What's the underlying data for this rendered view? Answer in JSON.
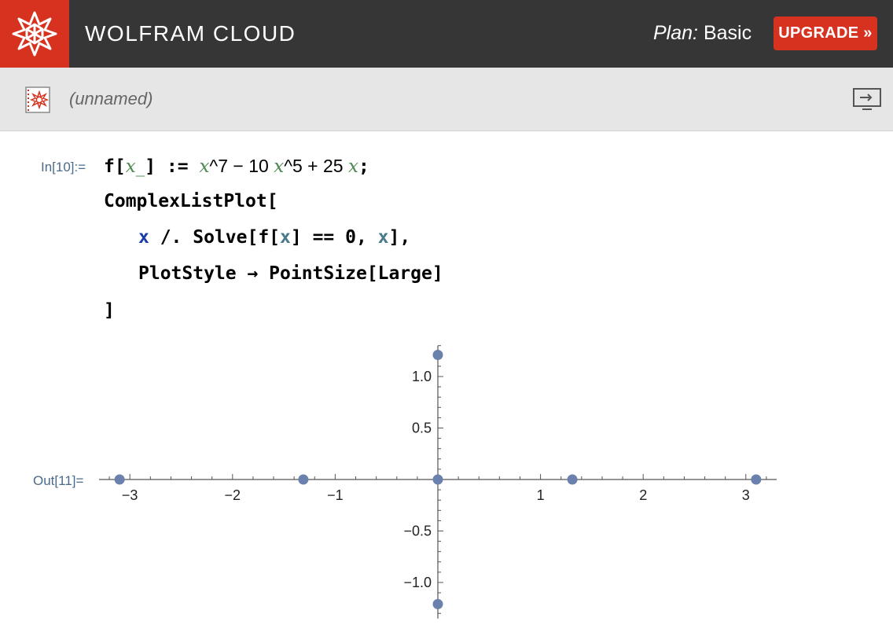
{
  "header": {
    "brand": "WOLFRAM CLOUD",
    "plan_label": "Plan:",
    "plan_value": "Basic",
    "upgrade_label": "UPGRADE »",
    "logo_icon": "wolfram-spikey-icon",
    "accent": "#d6321f",
    "bar_color": "#363636"
  },
  "docbar": {
    "doc_icon": "notebook-icon",
    "title": "(unnamed)",
    "present_icon": "present-screen-icon"
  },
  "cell_in": {
    "label": "In[10]:=",
    "line1": {
      "f": "f[",
      "x1": "x",
      "us": "_",
      "close": "] := ",
      "x2": "x",
      "p7": "^7 − 10 ",
      "x3": "x",
      "p5": "^5 + 25 ",
      "x4": "x",
      "semi": ";"
    },
    "line2": "ComplexListPlot[",
    "line3": {
      "x": "x",
      "mid": " /. Solve[f[",
      "x2": "x",
      "mid2": "] == 0, ",
      "x3": "x",
      "end": "],"
    },
    "line4": "PlotStyle → PointSize[Large]",
    "line5": "]"
  },
  "cell_out": {
    "label": "Out[11]="
  },
  "chart_data": {
    "type": "scatter",
    "title": "",
    "xlabel": "",
    "ylabel": "",
    "xlim": [
      -3.3,
      3.3
    ],
    "ylim": [
      -1.35,
      1.3
    ],
    "x_ticks": [
      -3,
      -2,
      -1,
      1,
      2,
      3
    ],
    "x_tick_labels": [
      "−3",
      "−2",
      "−1",
      "1",
      "2",
      "3"
    ],
    "y_ticks": [
      1.0,
      0.5,
      -0.5,
      -1.0
    ],
    "y_tick_labels": [
      "1.0",
      "0.5",
      "−0.5",
      "−1.0"
    ],
    "point_color": "#6a80ad",
    "grid": false,
    "points": [
      {
        "x": -3.1,
        "y": 0
      },
      {
        "x": -1.31,
        "y": 0
      },
      {
        "x": 0,
        "y": 0
      },
      {
        "x": 1.31,
        "y": 0
      },
      {
        "x": 3.1,
        "y": 0
      },
      {
        "x": 0,
        "y": 1.21
      },
      {
        "x": 0,
        "y": -1.21
      }
    ]
  }
}
